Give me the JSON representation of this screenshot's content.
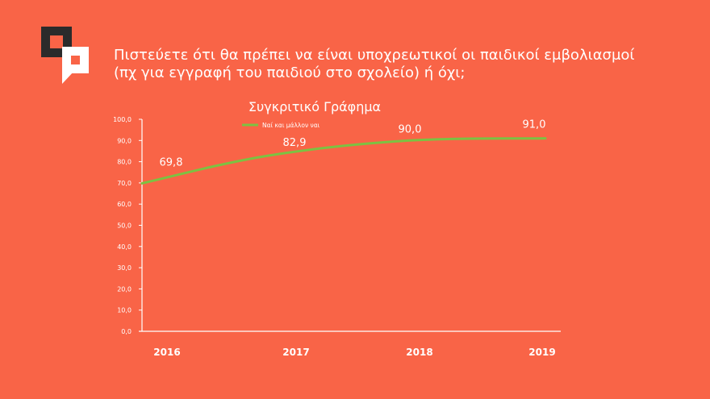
{
  "slide": {
    "question_line1": "Πιστεύετε ότι θα πρέπει να είναι υποχρεωτικοί οι παιδικοί εμβολιασμοί",
    "question_line2": "(πχ για εγγραφή του παιδιού στο σχολείο) ή όχι;",
    "logo_icon": "speech-bubble-logo-icon",
    "background_color": "#f96447"
  },
  "chart_data": {
    "type": "line",
    "title": "Συγκριτικό Γράφημα",
    "categories": [
      "2016",
      "2017",
      "2018",
      "2019"
    ],
    "series": [
      {
        "name": "Ναί και μάλλον ναι",
        "values": [
          69.8,
          82.9,
          90.0,
          91.0
        ],
        "labels": [
          "69,8",
          "82,9",
          "90,0",
          "91,0"
        ],
        "color": "#7cc242"
      }
    ],
    "yticks": [
      "0,0",
      "10,0",
      "20,0",
      "30,0",
      "40,0",
      "50,0",
      "60,0",
      "70,0",
      "80,0",
      "90,0",
      "100,0"
    ],
    "ylim": [
      0,
      100
    ],
    "grid": false,
    "legend": "top-left",
    "axis_color": "#ffffff"
  }
}
